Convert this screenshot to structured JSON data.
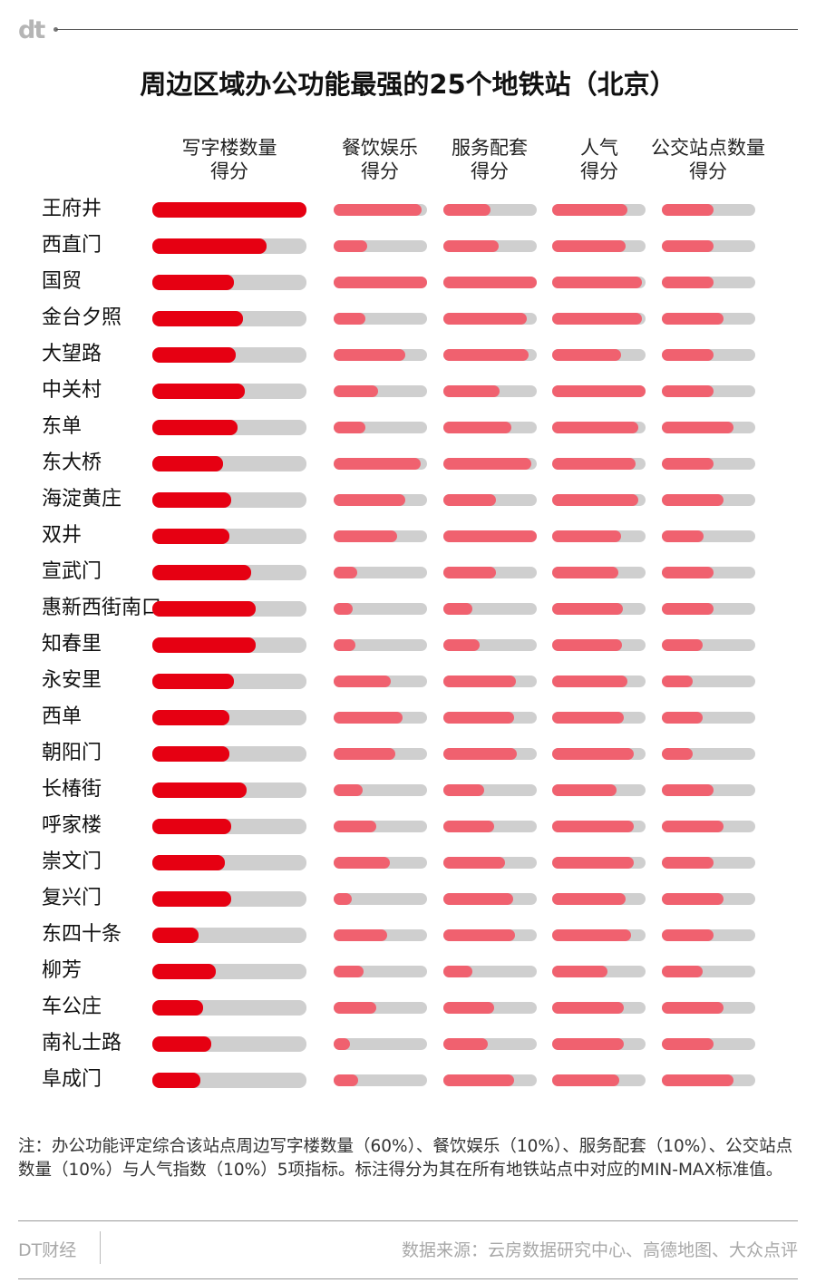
{
  "header": {
    "logo": "dt",
    "title": "周边区域办公功能最强的25个地铁站（北京）"
  },
  "chart_data": {
    "type": "bar",
    "title": "周边区域办公功能最强的25个地铁站（北京）",
    "series": [
      {
        "name": "写字楼数量\n得分",
        "values": [
          1.0,
          0.74,
          0.53,
          0.59,
          0.54,
          0.6,
          0.55,
          0.46,
          0.51,
          0.5,
          0.64,
          0.67,
          0.67,
          0.53,
          0.5,
          0.5,
          0.61,
          0.51,
          0.47,
          0.51,
          0.3,
          0.41,
          0.33,
          0.38,
          0.31
        ]
      },
      {
        "name": "餐饮娱乐\n得分",
        "values": [
          0.94,
          0.36,
          1.0,
          0.34,
          0.77,
          0.48,
          0.34,
          0.93,
          0.77,
          0.68,
          0.25,
          0.2,
          0.23,
          0.61,
          0.74,
          0.66,
          0.31,
          0.46,
          0.6,
          0.19,
          0.57,
          0.32,
          0.46,
          0.17,
          0.26
        ]
      },
      {
        "name": "服务配套\n得分",
        "values": [
          0.5,
          0.59,
          1.0,
          0.89,
          0.91,
          0.6,
          0.73,
          0.94,
          0.56,
          1.0,
          0.56,
          0.31,
          0.39,
          0.78,
          0.76,
          0.79,
          0.44,
          0.54,
          0.66,
          0.75,
          0.77,
          0.31,
          0.54,
          0.48,
          0.76
        ]
      },
      {
        "name": "人气\n得分",
        "values": [
          0.81,
          0.79,
          0.96,
          0.96,
          0.74,
          1.0,
          0.92,
          0.89,
          0.92,
          0.74,
          0.71,
          0.76,
          0.75,
          0.81,
          0.77,
          0.87,
          0.69,
          0.87,
          0.87,
          0.79,
          0.84,
          0.59,
          0.77,
          0.77,
          0.72
        ]
      },
      {
        "name": "公交站点数量\n得分",
        "values": [
          0.55,
          0.55,
          0.55,
          0.66,
          0.55,
          0.55,
          0.77,
          0.55,
          0.66,
          0.45,
          0.55,
          0.55,
          0.44,
          0.33,
          0.44,
          0.33,
          0.55,
          0.66,
          0.55,
          0.66,
          0.55,
          0.44,
          0.66,
          0.55,
          0.77
        ]
      }
    ],
    "categories": [
      "王府井",
      "西直门",
      "国贸",
      "金台夕照",
      "大望路",
      "中关村",
      "东单",
      "东大桥",
      "海淀黄庄",
      "双井",
      "宣武门",
      "惠新西街南口",
      "知春里",
      "永安里",
      "西单",
      "朝阳门",
      "长椿街",
      "呼家楼",
      "崇文门",
      "复兴门",
      "东四十条",
      "柳芳",
      "车公庄",
      "南礼士路",
      "阜成门"
    ],
    "ylim": [
      0,
      1
    ],
    "legend": "none"
  },
  "colors": {
    "primary_fill": "#e60012",
    "secondary_fill": "#f0616f",
    "track": "#cfcfcf"
  },
  "footer": {
    "note": "注：办公功能评定综合该站点周边写字楼数量（60%）、餐饮娱乐（10%）、服务配套（10%）、公交站点数量（10%）与人气指数（10%）5项指标。标注得分为其在所有地铁站点中对应的MIN-MAX标准值。",
    "brand": "DT财经",
    "source": "数据来源：云房数据研究中心、高德地图、大众点评"
  }
}
